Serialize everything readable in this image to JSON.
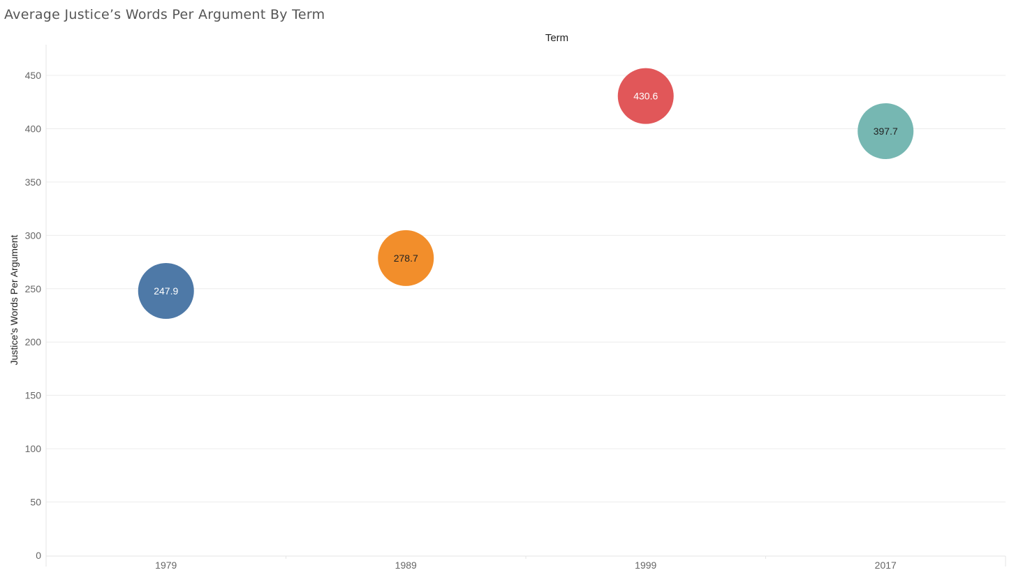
{
  "title": "Average Justice’s Words Per Argument By Term",
  "x_header": "Term",
  "y_axis_title": "Justice's Words Per Argument",
  "chart_data": {
    "type": "scatter",
    "title": "Average Justice’s Words Per Argument By Term",
    "xlabel": "Term",
    "ylabel": "Justice's Words Per Argument",
    "categories": [
      "1979",
      "1989",
      "1999",
      "2017"
    ],
    "values": [
      247.9,
      278.7,
      430.6,
      397.7
    ],
    "data_labels": [
      "247.9",
      "278.7",
      "430.6",
      "397.7"
    ],
    "colors": [
      "#4e79a7",
      "#f28e2b",
      "#e15759",
      "#76b7b2"
    ],
    "label_colors": [
      "#ffffff",
      "#222222",
      "#ffffff",
      "#222222"
    ],
    "ylim": [
      0,
      450
    ],
    "yticks": [
      0,
      50,
      100,
      150,
      200,
      250,
      300,
      350,
      400,
      450
    ],
    "grid": true,
    "legend": "none"
  }
}
